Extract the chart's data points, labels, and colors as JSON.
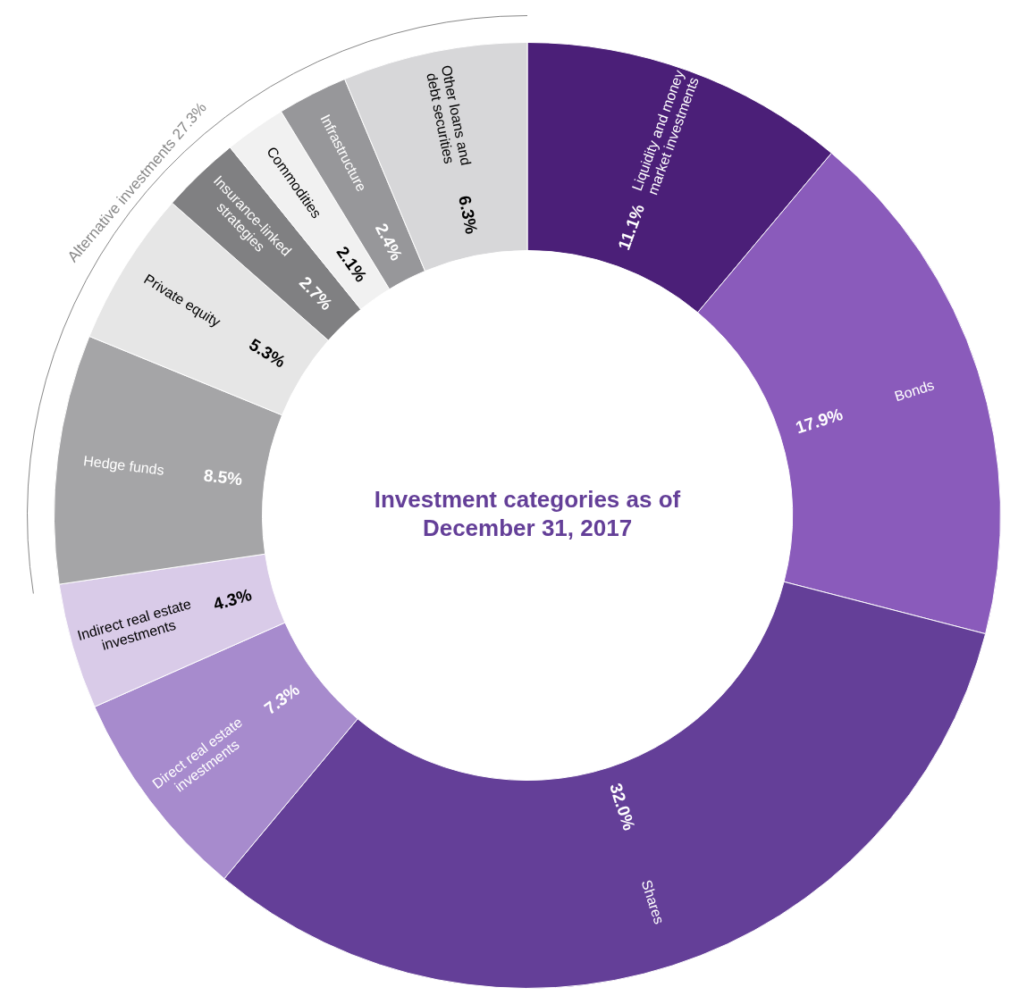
{
  "chart_data": {
    "type": "donut",
    "title": "Investment categories as of December 31, 2017",
    "categories": [
      "Liquidity and money market investments",
      "Bonds",
      "Shares",
      "Direct real estate investments",
      "Indirect real estate investments",
      "Hedge funds",
      "Private equity",
      "Insurance-linked strategies",
      "Commodities",
      "Infrastructure",
      "Other loans and debt securities"
    ],
    "values": [
      11.1,
      17.9,
      32.0,
      7.3,
      4.3,
      8.5,
      5.3,
      2.7,
      2.1,
      2.4,
      6.3
    ],
    "colors": [
      "#4b1f78",
      "#8a5bbb",
      "#643f98",
      "#a78bcd",
      "#d9cbe8",
      "#a5a5a7",
      "#e6e6e6",
      "#808082",
      "#f1f1f1",
      "#97979a",
      "#d7d7d9"
    ],
    "value_labels": [
      "11.1%",
      "17.9%",
      "32.0%",
      "7.3%",
      "4.3%",
      "8.5%",
      "5.3%",
      "2.7%",
      "2.1%",
      "2.4%",
      "6.3%"
    ],
    "legend": false,
    "annotations": [
      "Alternative investments 27.3%"
    ]
  }
}
